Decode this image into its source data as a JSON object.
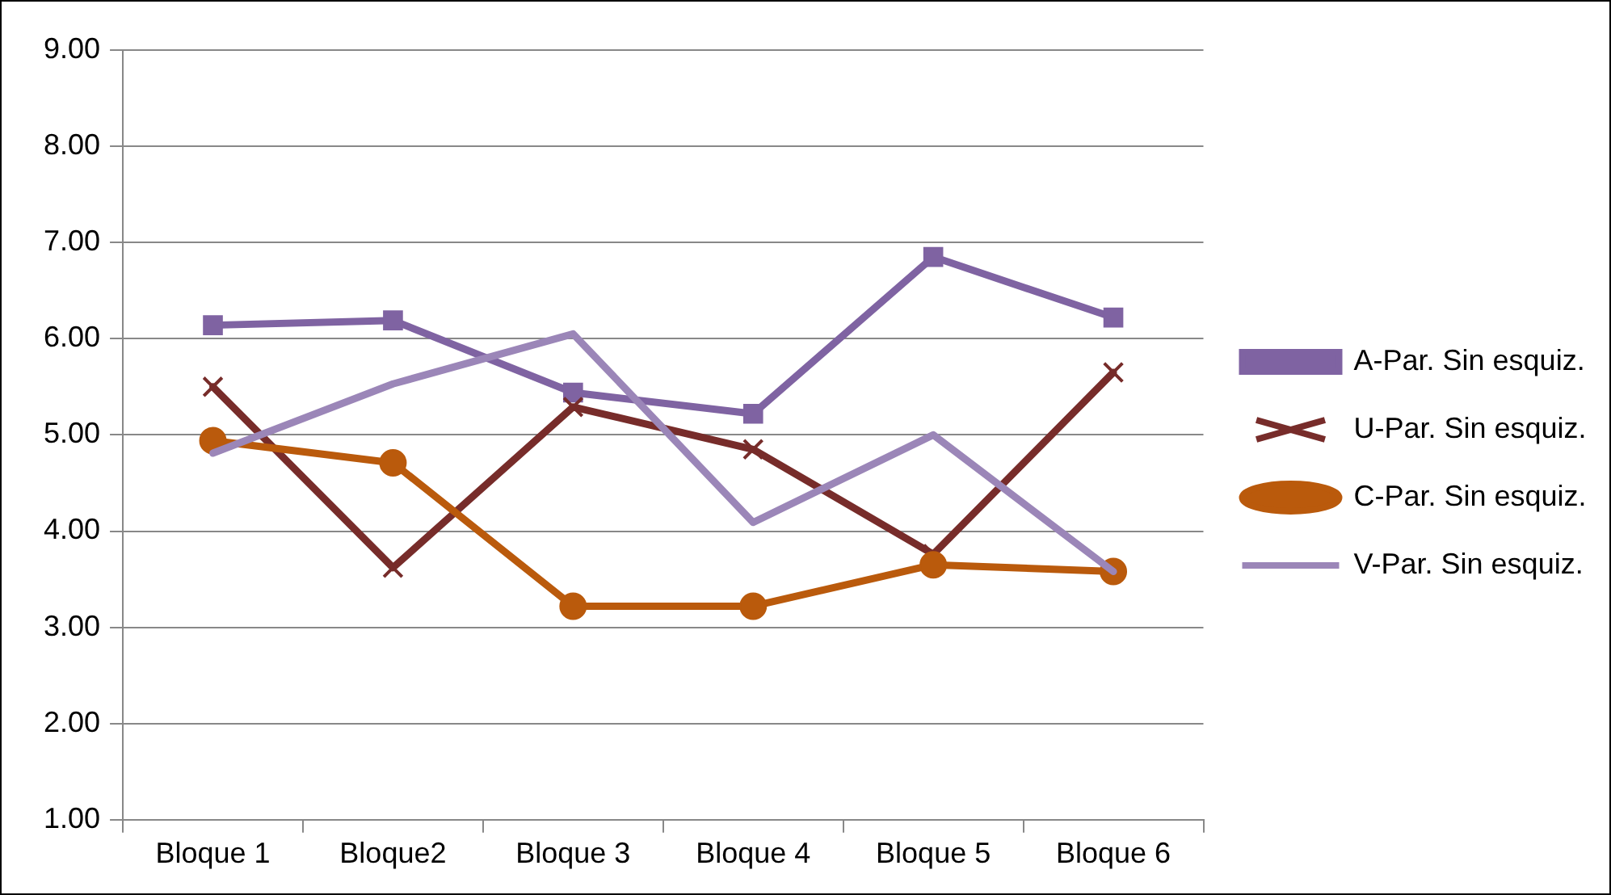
{
  "chart_data": {
    "type": "line",
    "categories": [
      "Bloque 1",
      "Bloque2",
      "Bloque 3",
      "Bloque 4",
      "Bloque 5",
      "Bloque 6"
    ],
    "series": [
      {
        "name": "A-Par. Sin esquiz.",
        "color": "#7f63a2",
        "marker": "square",
        "values": [
          6.14,
          6.19,
          5.44,
          5.22,
          6.85,
          6.22
        ]
      },
      {
        "name": "U-Par. Sin esquiz.",
        "color": "#772c2a",
        "marker": "cross",
        "values": [
          5.5,
          3.62,
          5.29,
          4.85,
          3.76,
          5.65
        ]
      },
      {
        "name": "C-Par. Sin esquiz.",
        "color": "#ba5a0c",
        "marker": "circle",
        "values": [
          4.94,
          4.71,
          3.22,
          3.22,
          3.65,
          3.58
        ]
      },
      {
        "name": "V-Par. Sin esquiz.",
        "color": "#9b86b8",
        "marker": "none",
        "values": [
          4.81,
          5.53,
          6.05,
          4.09,
          5.0,
          3.58
        ]
      }
    ],
    "ylim": [
      1,
      9
    ],
    "yticks": [
      {
        "value": 1,
        "label": "1.00"
      },
      {
        "value": 2,
        "label": "2.00"
      },
      {
        "value": 3,
        "label": "3.00"
      },
      {
        "value": 4,
        "label": "4.00"
      },
      {
        "value": 5,
        "label": "5.00"
      },
      {
        "value": 6,
        "label": "6.00"
      },
      {
        "value": 7,
        "label": "7.00"
      },
      {
        "value": 8,
        "label": "8.00"
      },
      {
        "value": 9,
        "label": "9.00"
      }
    ],
    "grid": "y",
    "legend": "right"
  }
}
